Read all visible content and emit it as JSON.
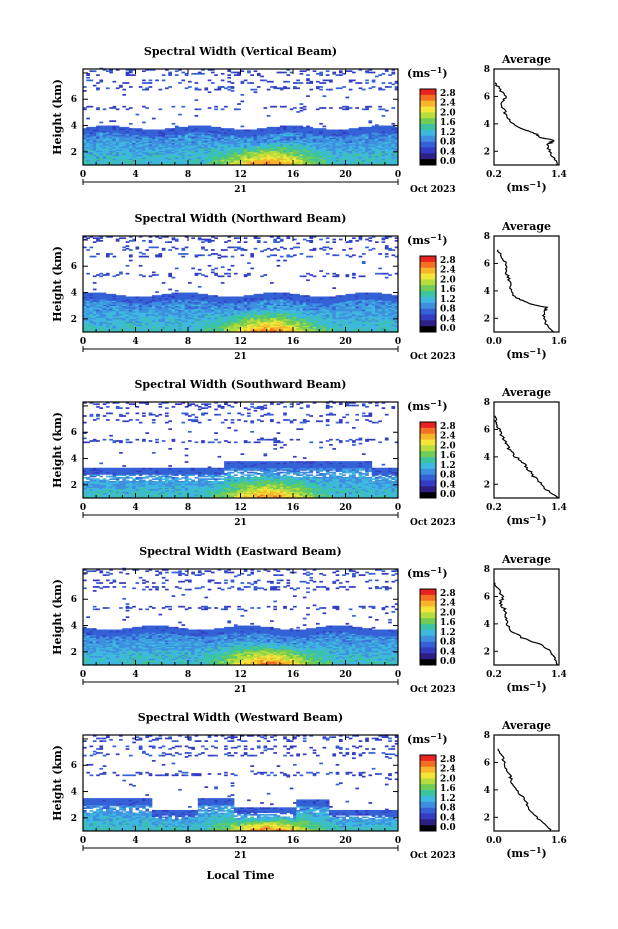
{
  "chart_data": {
    "type": "heatmap",
    "colorbar": {
      "unit_label": "(ms",
      "unit_sup": "−1",
      "unit_close": ")",
      "ticks": [
        "2.8",
        "2.4",
        "2.0",
        "1.6",
        "1.2",
        "0.8",
        "0.4",
        "0.0"
      ],
      "colors": [
        "#e8231f",
        "#f36f21",
        "#f8b42a",
        "#f4e53a",
        "#b7dc3e",
        "#6fcc55",
        "#3cc4a0",
        "#3fb8e0",
        "#3f8fe0",
        "#3561d6",
        "#343cc2",
        "#2e1f86",
        "#000000"
      ]
    },
    "x_ticks": [
      "0",
      "4",
      "8",
      "12",
      "16",
      "20",
      "0"
    ],
    "x_range": [
      0,
      24
    ],
    "y_ticks": [
      "2",
      "4",
      "6"
    ],
    "y_range": [
      1,
      8.3
    ],
    "day_label": "21",
    "month_label": "Oct 2023",
    "ylabel": "Height (km)",
    "xlabel": "Local Time",
    "avg_title": "Average",
    "avg_unit": "(ms",
    "avg_unit_sup": "−1",
    "avg_unit_close": ")",
    "avg_y_ticks": [
      "2",
      "4",
      "6"
    ],
    "panels": [
      {
        "title": "Spectral Width (Vertical Beam)",
        "avg_xlim": [
          0.2,
          1.4
        ],
        "avg_x_ticks": [
          "0.2",
          "1.4"
        ],
        "avg_height": [
          1.0,
          1.5,
          2.0,
          2.5,
          2.8,
          3.0,
          3.3,
          3.6,
          4.0,
          4.5,
          5.0,
          5.5,
          6.0,
          6.5,
          7.0
        ],
        "avg_width": [
          1.38,
          1.3,
          1.22,
          1.2,
          1.3,
          1.08,
          0.95,
          0.75,
          0.55,
          0.42,
          0.4,
          0.32,
          0.42,
          0.3,
          0.22
        ]
      },
      {
        "title": "Spectral Width (Northward Beam)",
        "avg_xlim": [
          0.0,
          1.6
        ],
        "avg_x_ticks": [
          "0.0",
          "1.6"
        ],
        "avg_height": [
          1.0,
          1.5,
          2.0,
          2.5,
          2.8,
          3.0,
          3.3,
          3.6,
          4.0,
          4.5,
          5.0,
          5.5,
          6.0,
          6.5,
          7.0
        ],
        "avg_width": [
          1.45,
          1.3,
          1.22,
          1.25,
          1.3,
          0.95,
          0.7,
          0.5,
          0.42,
          0.4,
          0.35,
          0.28,
          0.3,
          0.18,
          0.1
        ]
      },
      {
        "title": "Spectral Width (Southward Beam)",
        "avg_xlim": [
          0.2,
          1.4
        ],
        "avg_x_ticks": [
          "0.2",
          "1.4"
        ],
        "avg_height": [
          1.0,
          1.5,
          2.0,
          2.5,
          3.0,
          3.5,
          4.0,
          4.5,
          5.0,
          5.5,
          6.0,
          6.5,
          7.0
        ],
        "avg_width": [
          1.4,
          1.2,
          1.08,
          0.95,
          0.85,
          0.75,
          0.6,
          0.48,
          0.42,
          0.35,
          0.3,
          0.25,
          0.22
        ]
      },
      {
        "title": "Spectral Width (Eastward Beam)",
        "avg_xlim": [
          0.2,
          1.4
        ],
        "avg_x_ticks": [
          "0.2",
          "1.4"
        ],
        "avg_height": [
          1.0,
          1.5,
          2.0,
          2.5,
          3.0,
          3.5,
          4.0,
          4.5,
          5.0,
          5.5,
          6.0,
          6.5,
          7.0
        ],
        "avg_width": [
          1.38,
          1.32,
          1.25,
          1.05,
          0.72,
          0.52,
          0.45,
          0.42,
          0.4,
          0.32,
          0.36,
          0.28,
          0.22
        ]
      },
      {
        "title": "Spectral Width (Westward Beam)",
        "avg_xlim": [
          0.0,
          1.6
        ],
        "avg_x_ticks": [
          "0.0",
          "1.6"
        ],
        "avg_height": [
          1.0,
          1.5,
          2.0,
          2.5,
          3.0,
          3.5,
          4.0,
          4.5,
          5.0,
          5.5,
          6.0,
          6.5,
          7.0
        ],
        "avg_width": [
          1.4,
          1.25,
          1.05,
          0.9,
          0.8,
          0.7,
          0.55,
          0.45,
          0.4,
          0.3,
          0.25,
          0.2,
          0.1
        ]
      }
    ]
  }
}
